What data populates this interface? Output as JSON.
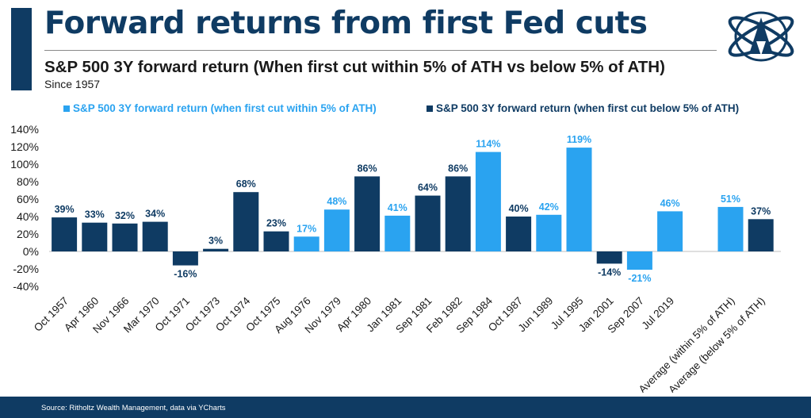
{
  "header": {
    "title": "Forward returns from first Fed cuts",
    "subtitle": "S&P 500 3Y forward return (When first cut within 5% of ATH vs below 5% of ATH)",
    "since": "Since 1957"
  },
  "footer": {
    "source": "Source: Ritholtz Wealth Management, data via YCharts"
  },
  "colors": {
    "brand_navy": "#0f3b63",
    "within_ath": "#2aa3f0",
    "below_ath": "#0f3b63"
  },
  "chart_data": {
    "type": "bar",
    "title": "",
    "xlabel": "",
    "ylabel": "",
    "ylim": [
      -40,
      140
    ],
    "yticks": [
      -40,
      -20,
      0,
      20,
      40,
      60,
      80,
      100,
      120,
      140
    ],
    "ytick_labels": [
      "-40%",
      "-20%",
      "0%",
      "20%",
      "40%",
      "60%",
      "80%",
      "100%",
      "120%",
      "140%"
    ],
    "grid": false,
    "legend_position": "top",
    "legend": [
      {
        "label": "S&P 500 3Y forward return (when first cut within 5% of ATH)",
        "color": "#2aa3f0"
      },
      {
        "label": "S&P 500 3Y forward return (when first cut below 5% of ATH)",
        "color": "#0f3b63"
      }
    ],
    "categories": [
      "Oct 1957",
      "Apr 1960",
      "Nov 1966",
      "Mar 1970",
      "Oct 1971",
      "Oct 1973",
      "Oct 1974",
      "Oct 1975",
      "Aug 1976",
      "Nov 1979",
      "Apr 1980",
      "Jan 1981",
      "Sep 1981",
      "Feb 1982",
      "Sep 1984",
      "Oct 1987",
      "Jun 1989",
      "Jul 1995",
      "Jan 2001",
      "Sep 2007",
      "Jul 2019",
      "",
      "Average (within 5% of ATH)",
      "Average (below 5% of ATH)"
    ],
    "values": [
      39,
      33,
      32,
      34,
      -16,
      3,
      68,
      23,
      17,
      48,
      86,
      41,
      64,
      86,
      114,
      40,
      42,
      119,
      -14,
      -21,
      46,
      null,
      51,
      37
    ],
    "value_labels": [
      "39%",
      "33%",
      "32%",
      "34%",
      "-16%",
      "3%",
      "68%",
      "23%",
      "17%",
      "48%",
      "86%",
      "41%",
      "64%",
      "86%",
      "114%",
      "40%",
      "42%",
      "119%",
      "-14%",
      "-21%",
      "46%",
      "",
      "51%",
      "37%"
    ],
    "group": [
      1,
      1,
      1,
      1,
      1,
      1,
      1,
      1,
      0,
      0,
      1,
      0,
      1,
      1,
      0,
      1,
      0,
      0,
      1,
      0,
      0,
      null,
      0,
      1
    ]
  }
}
